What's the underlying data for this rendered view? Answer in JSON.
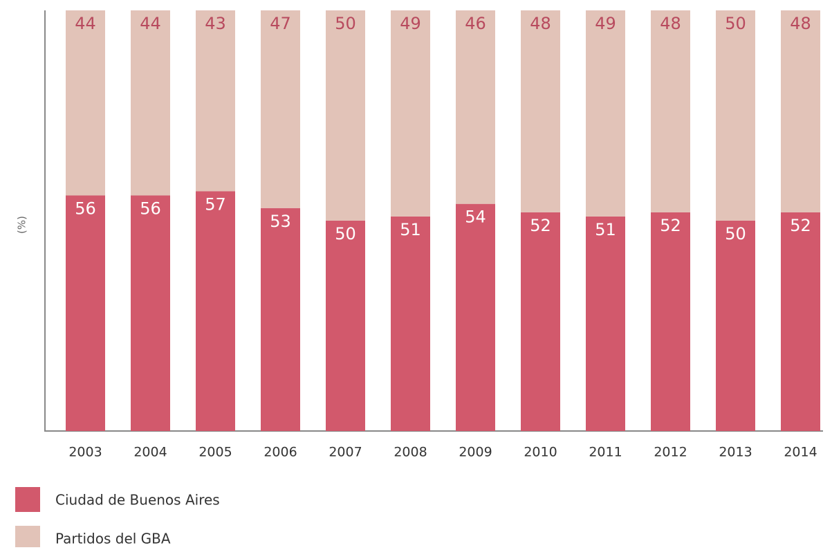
{
  "chart_data": {
    "type": "stacked_bar",
    "y_label": "(%)",
    "categories": [
      "2003",
      "2004",
      "2005",
      "2006",
      "2007",
      "2008",
      "2009",
      "2010",
      "2011",
      "2012",
      "2013",
      "2014"
    ],
    "series": [
      {
        "name": "Ciudad de Buenos Aires",
        "color": "#d2596c",
        "label_color": "#ffffff",
        "values": [
          56,
          56,
          57,
          53,
          50,
          51,
          54,
          52,
          51,
          52,
          50,
          52
        ]
      },
      {
        "name": "Partidos del GBA",
        "color": "#e2c3b8",
        "label_color": "#b84a5e",
        "values": [
          44,
          44,
          43,
          47,
          50,
          49,
          46,
          48,
          49,
          48,
          50,
          48
        ]
      }
    ],
    "ylim": [
      0,
      100
    ],
    "grid": false,
    "legend": "bottom-left"
  }
}
